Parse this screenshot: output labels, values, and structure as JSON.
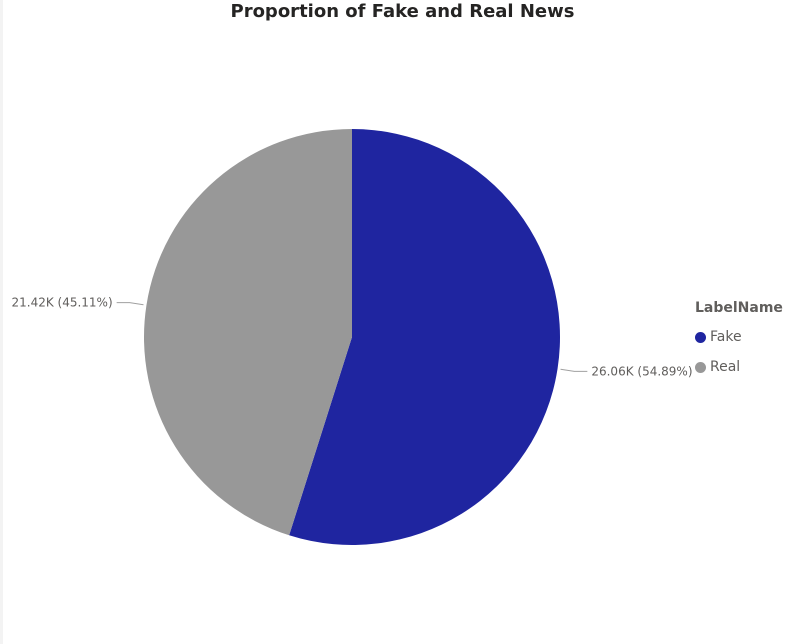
{
  "chart_data": {
    "type": "pie",
    "title": "Proportion of Fake and Real News",
    "slices": [
      {
        "name": "Fake",
        "value": 26.06,
        "percent": 54.89,
        "label": "26.06K (54.89%)",
        "color": "#1f25a0"
      },
      {
        "name": "Real",
        "value": 21.42,
        "percent": 45.11,
        "label": "21.42K (45.11%)",
        "color": "#989898"
      }
    ],
    "legend": {
      "title": "LabelName",
      "placement": "right"
    }
  }
}
